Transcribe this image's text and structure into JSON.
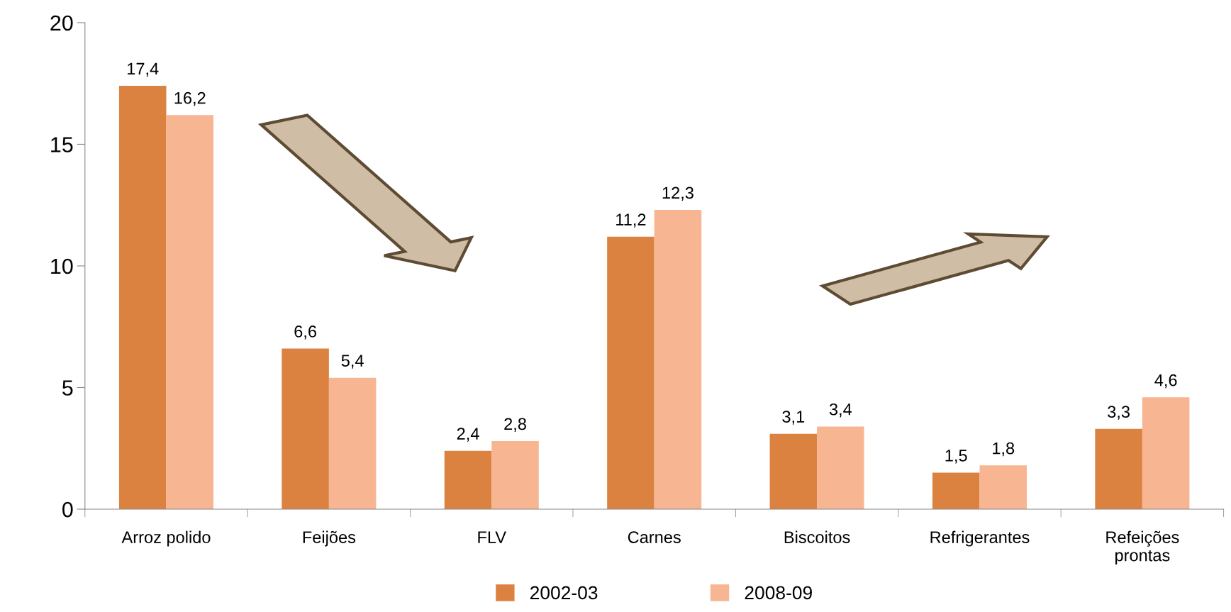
{
  "chart_data": {
    "type": "bar",
    "categories": [
      "Arroz polido",
      "Feijões",
      "FLV",
      "Carnes",
      "Biscoitos",
      "Refrigerantes",
      "Refeições prontas"
    ],
    "series": [
      {
        "name": "2002-03",
        "color": "#dc8240",
        "values": [
          17.4,
          6.6,
          2.4,
          11.2,
          3.1,
          1.5,
          3.3
        ],
        "value_labels": [
          "17,4",
          "6,6",
          "2,4",
          "11,2",
          "3,1",
          "1,5",
          "3,3"
        ]
      },
      {
        "name": "2008-09",
        "color": "#f8b592",
        "values": [
          16.2,
          5.4,
          2.8,
          12.3,
          3.4,
          1.8,
          4.6
        ],
        "value_labels": [
          "16,2",
          "5,4",
          "2,8",
          "12,3",
          "3,4",
          "1,8",
          "4,6"
        ]
      }
    ],
    "ylim": [
      0,
      20
    ],
    "yticks": [
      0,
      5,
      10,
      15,
      20
    ],
    "grid": false,
    "legend": "bottom"
  }
}
